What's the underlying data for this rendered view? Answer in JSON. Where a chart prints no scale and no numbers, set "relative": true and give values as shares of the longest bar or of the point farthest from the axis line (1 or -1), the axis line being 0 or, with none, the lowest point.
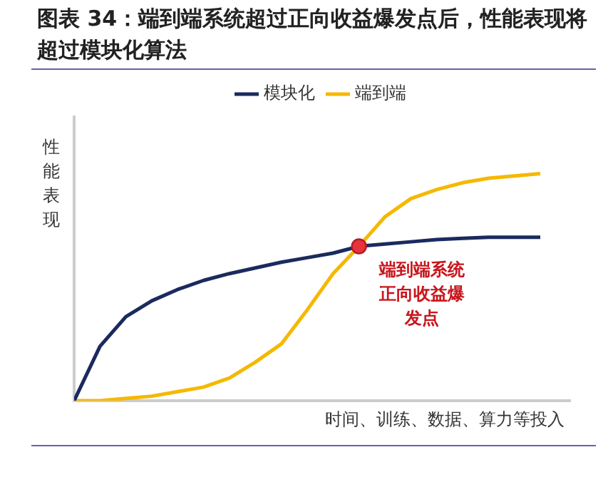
{
  "chart_data": {
    "type": "line",
    "title": "图表 34：端到端系统超过正向收益爆发点后，性能表现将超过模块化算法",
    "xlabel": "时间、训练、数据、算力等投入",
    "ylabel": "性能表现",
    "relative": true,
    "legend": "top",
    "marker": "none",
    "line_style": "solid",
    "grid": false,
    "categories": [
      null,
      null,
      null,
      null,
      null,
      null,
      null,
      null,
      null,
      null,
      null,
      null,
      null,
      null,
      null,
      null,
      null,
      null,
      null
    ],
    "series": [
      {
        "name": "模块化",
        "color": "#1b2a5e",
        "values": [
          0,
          0.24,
          0.37,
          0.44,
          0.49,
          0.53,
          0.56,
          0.585,
          0.61,
          0.63,
          0.65,
          0.68,
          0.69,
          0.7,
          0.71,
          0.715,
          0.72,
          0.72,
          0.72
        ]
      },
      {
        "name": "端到端",
        "color": "#f5b800",
        "values": [
          0,
          0,
          0.01,
          0.02,
          0.04,
          0.06,
          0.1,
          0.17,
          0.25,
          0.4,
          0.56,
          0.68,
          0.81,
          0.89,
          0.93,
          0.96,
          0.98,
          0.99,
          1
        ]
      }
    ],
    "annotations": [
      "端到端系统正向收益爆发点"
    ]
  }
}
